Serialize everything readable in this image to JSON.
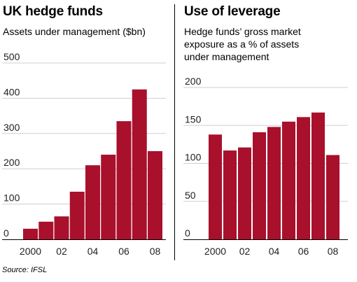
{
  "colors": {
    "bar": "#a8102c",
    "grid": "#cfcfcf",
    "axis": "#000000"
  },
  "chart_data": [
    {
      "type": "bar",
      "title": "UK hedge funds",
      "subtitle": "Assets under management ($bn)",
      "categories": [
        "2000",
        "2001",
        "2002",
        "2003",
        "2004",
        "2005",
        "2006",
        "2007",
        "2008"
      ],
      "values": [
        30,
        50,
        65,
        135,
        210,
        240,
        335,
        425,
        250
      ],
      "x_tick_labels": [
        "2000",
        "02",
        "04",
        "06",
        "08"
      ],
      "y_ticks": [
        0,
        100,
        200,
        300,
        400,
        500
      ],
      "ylim": [
        0,
        500
      ],
      "grid": true
    },
    {
      "type": "bar",
      "title": "Use of leverage",
      "subtitle_lines": [
        "Hedge funds’ gross market",
        "exposure as a % of assets",
        "under management"
      ],
      "categories": [
        "2000",
        "2001",
        "2002",
        "2003",
        "2004",
        "2005",
        "2006",
        "2007",
        "2008"
      ],
      "values": [
        138,
        117,
        121,
        141,
        148,
        155,
        161,
        167,
        111
      ],
      "x_tick_labels": [
        "2000",
        "02",
        "04",
        "06",
        "08"
      ],
      "y_ticks": [
        0,
        50,
        100,
        150,
        200
      ],
      "ylim": [
        0,
        200
      ],
      "grid": true
    }
  ],
  "source": "Source: IFSL"
}
